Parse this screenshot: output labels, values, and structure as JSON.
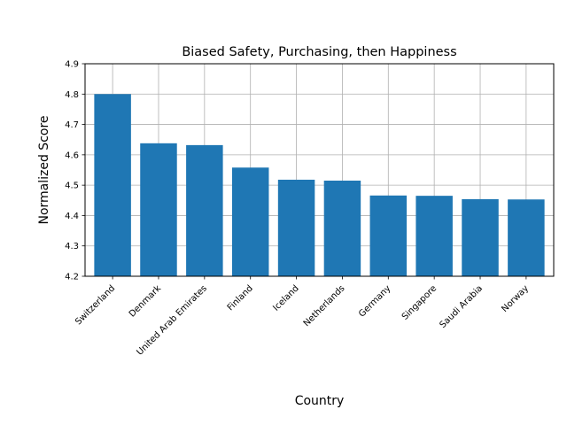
{
  "chart_data": {
    "type": "bar",
    "title": "Biased Safety, Purchasing, then Happiness",
    "xlabel": "Country",
    "ylabel": "Normalized Score",
    "categories": [
      "Switzerland",
      "Denmark",
      "United Arab Emirates",
      "Finland",
      "Iceland",
      "Netherlands",
      "Germany",
      "Singapore",
      "Saudi Arabia",
      "Norway"
    ],
    "values": [
      4.8,
      4.638,
      4.632,
      4.558,
      4.518,
      4.515,
      4.466,
      4.465,
      4.454,
      4.453
    ],
    "ylim": [
      4.2,
      4.9
    ],
    "yticks": [
      4.2,
      4.3,
      4.4,
      4.5,
      4.6,
      4.7,
      4.8,
      4.9
    ],
    "ytick_labels": [
      "4.2",
      "4.3",
      "4.4",
      "4.5",
      "4.6",
      "4.7",
      "4.8",
      "4.9"
    ],
    "grid": true,
    "colors": {
      "bar": "#1f77b4",
      "grid": "#b0b0b0",
      "axis": "#000000"
    }
  }
}
